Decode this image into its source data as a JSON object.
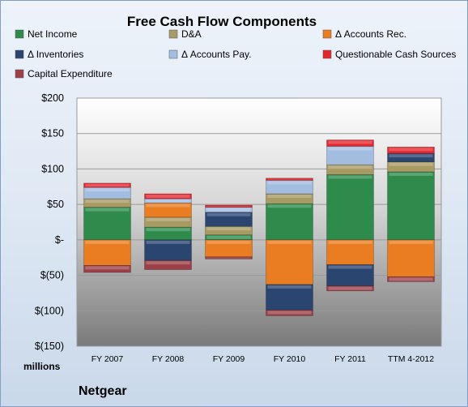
{
  "chart_data": {
    "type": "bar",
    "title": "Free Cash Flow Components",
    "unit_label": "millions",
    "footer_label": "Netgear",
    "categories": [
      "FY 2007",
      "FY 2008",
      "FY 2009",
      "FY 2010",
      "FY 2011",
      "TTM 4-2012"
    ],
    "ylim": [
      -150,
      200
    ],
    "yticks": [
      -150,
      -100,
      -50,
      0,
      50,
      100,
      150,
      200
    ],
    "ytick_labels": [
      "$(150)",
      "$(100)",
      "$(50)",
      "$-",
      "$50",
      "$100",
      "$150",
      "$200"
    ],
    "grid": true,
    "stacked": true,
    "legend_position": "top",
    "series": [
      {
        "name": "Net Income",
        "color": "#2e8b4c",
        "values": [
          46,
          18,
          7,
          51,
          92,
          96
        ]
      },
      {
        "name": "D&A",
        "color": "#a89a63",
        "values": [
          12,
          14,
          12,
          14,
          14,
          14
        ]
      },
      {
        "name": "Δ Accounts Rec.",
        "color": "#ea7d22",
        "values": [
          -36,
          20,
          -24,
          -63,
          -35,
          -52
        ]
      },
      {
        "name": "Δ Inventories",
        "color": "#2a4570",
        "values": [
          0,
          -29,
          20,
          -36,
          -30,
          12
        ]
      },
      {
        "name": "Δ Accounts Pay.",
        "color": "#a3bde0",
        "values": [
          16,
          6,
          7,
          19,
          26,
          0
        ]
      },
      {
        "name": "Questionable Cash Sources",
        "color": "#e5272d",
        "values": [
          6,
          7,
          3,
          3,
          9,
          9
        ]
      },
      {
        "name": "Capital Expenditure",
        "color": "#9c4048",
        "values": [
          -10,
          -13,
          -3,
          -8,
          -7,
          -7
        ]
      }
    ]
  }
}
